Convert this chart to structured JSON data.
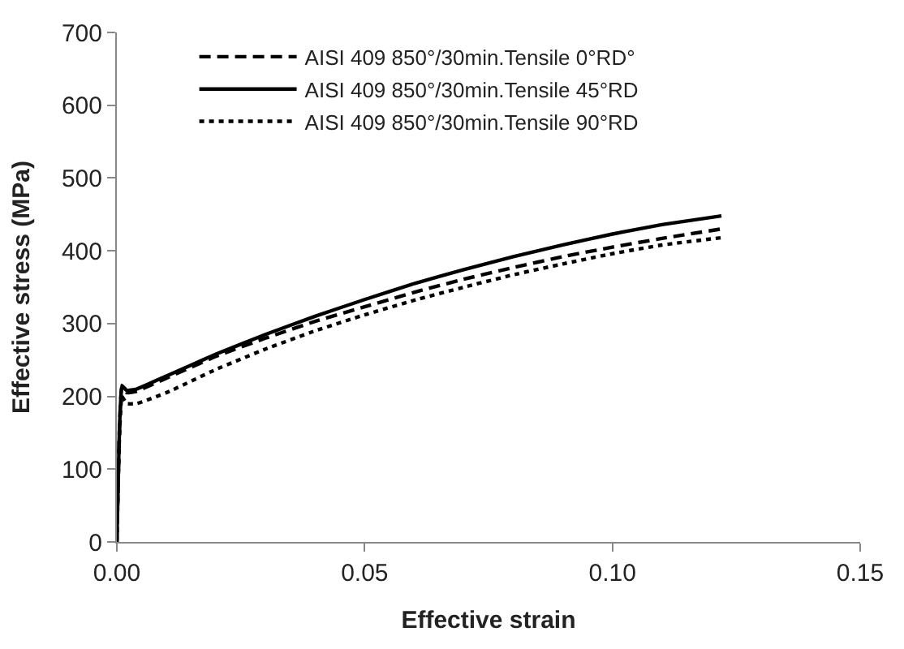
{
  "chart_data": {
    "type": "line",
    "xlabel": "Effective strain",
    "ylabel": "Effective stress (MPa)",
    "xlim": [
      0,
      0.15
    ],
    "xticks": [
      {
        "value": 0,
        "label": "0.00"
      },
      {
        "value": 0.05,
        "label": "0.05"
      },
      {
        "value": 0.1,
        "label": "0.10"
      },
      {
        "value": 0.15,
        "label": "0.15"
      }
    ],
    "ylim": [
      0,
      700
    ],
    "yticks": [
      0,
      100,
      200,
      300,
      400,
      500,
      600,
      700
    ],
    "legend": "top left",
    "marker": "none",
    "x": [
      0,
      0.0005,
      0.001,
      0.002,
      0.004,
      0.01,
      0.02,
      0.03,
      0.04,
      0.05,
      0.06,
      0.07,
      0.08,
      0.09,
      0.1,
      0.11,
      0.122
    ],
    "series": [
      {
        "name": "AISI 409 850°/30min.Tensile 0°RD°",
        "color": "#000000",
        "line_style": "dashed",
        "values": [
          0,
          150,
          212,
          205,
          207,
          225,
          255,
          280,
          303,
          323,
          343,
          361,
          377,
          392,
          405,
          417,
          430
        ]
      },
      {
        "name": "AISI 409 850°/30min.Tensile 45°RD",
        "color": "#000000",
        "line_style": "solid",
        "values": [
          0,
          150,
          215,
          208,
          210,
          228,
          258,
          285,
          310,
          333,
          355,
          374,
          392,
          408,
          423,
          436,
          448
        ]
      },
      {
        "name": "AISI 409 850°/30min.Tensile 90°RD",
        "color": "#000000",
        "line_style": "dotted",
        "values": [
          0,
          140,
          200,
          190,
          190,
          205,
          237,
          265,
          290,
          312,
          332,
          350,
          367,
          382,
          396,
          408,
          418
        ]
      }
    ]
  }
}
